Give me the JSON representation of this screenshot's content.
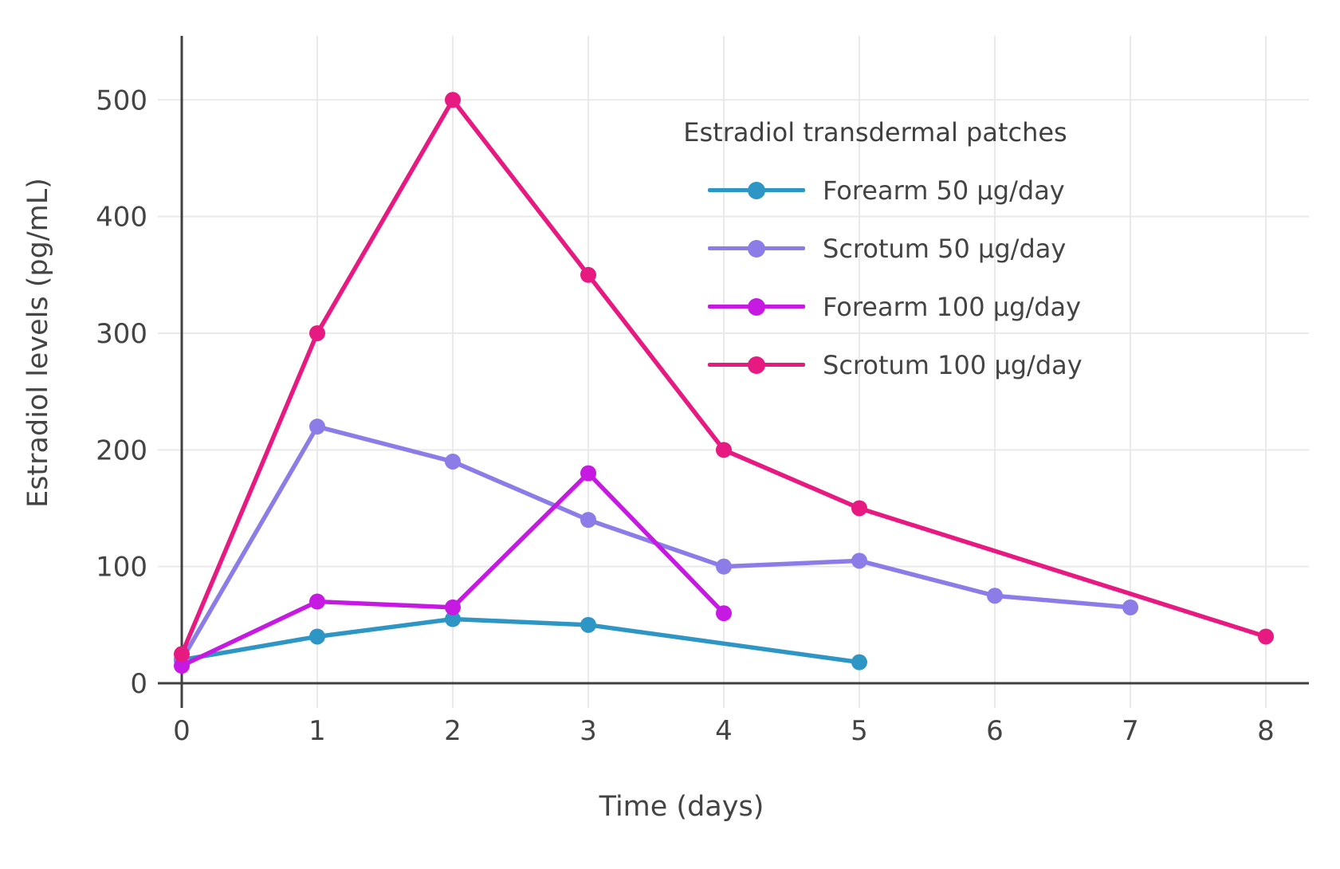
{
  "chart_data": {
    "type": "line",
    "title": "",
    "legend_title": "Estradiol transdermal patches",
    "xlabel": "Time (days)",
    "ylabel": "Estradiol levels (pg/mL)",
    "xlim": [
      0,
      8.3
    ],
    "ylim": [
      0,
      555
    ],
    "xticks": [
      0,
      1,
      2,
      3,
      4,
      5,
      6,
      7,
      8
    ],
    "yticks": [
      0,
      100,
      200,
      300,
      400,
      500
    ],
    "grid": true,
    "legend_position": "upper right inside plot",
    "series": [
      {
        "name": "Forearm 50 µg/day",
        "color": "#2E96C5",
        "points": [
          [
            0,
            20
          ],
          [
            1,
            40
          ],
          [
            2,
            55
          ],
          [
            3,
            50
          ],
          [
            5,
            18
          ]
        ]
      },
      {
        "name": "Scrotum 50 µg/day",
        "color": "#8B7CE8",
        "points": [
          [
            0,
            20
          ],
          [
            1,
            220
          ],
          [
            2,
            190
          ],
          [
            3,
            140
          ],
          [
            4,
            100
          ],
          [
            5,
            105
          ],
          [
            6,
            75
          ],
          [
            7,
            65
          ]
        ]
      },
      {
        "name": "Forearm 100 µg/day",
        "color": "#C61AE3",
        "points": [
          [
            0,
            15
          ],
          [
            1,
            70
          ],
          [
            2,
            65
          ],
          [
            3,
            180
          ],
          [
            4,
            60
          ]
        ]
      },
      {
        "name": "Scrotum 100 µg/day",
        "color": "#E61A80",
        "points": [
          [
            0,
            25
          ],
          [
            1,
            300
          ],
          [
            2,
            500
          ],
          [
            3,
            350
          ],
          [
            4,
            200
          ],
          [
            5,
            150
          ],
          [
            8,
            40
          ]
        ]
      }
    ],
    "colors": {
      "axis": "#404040",
      "grid": "#e9e9ea",
      "text": "#444444",
      "background": "#ffffff"
    }
  }
}
